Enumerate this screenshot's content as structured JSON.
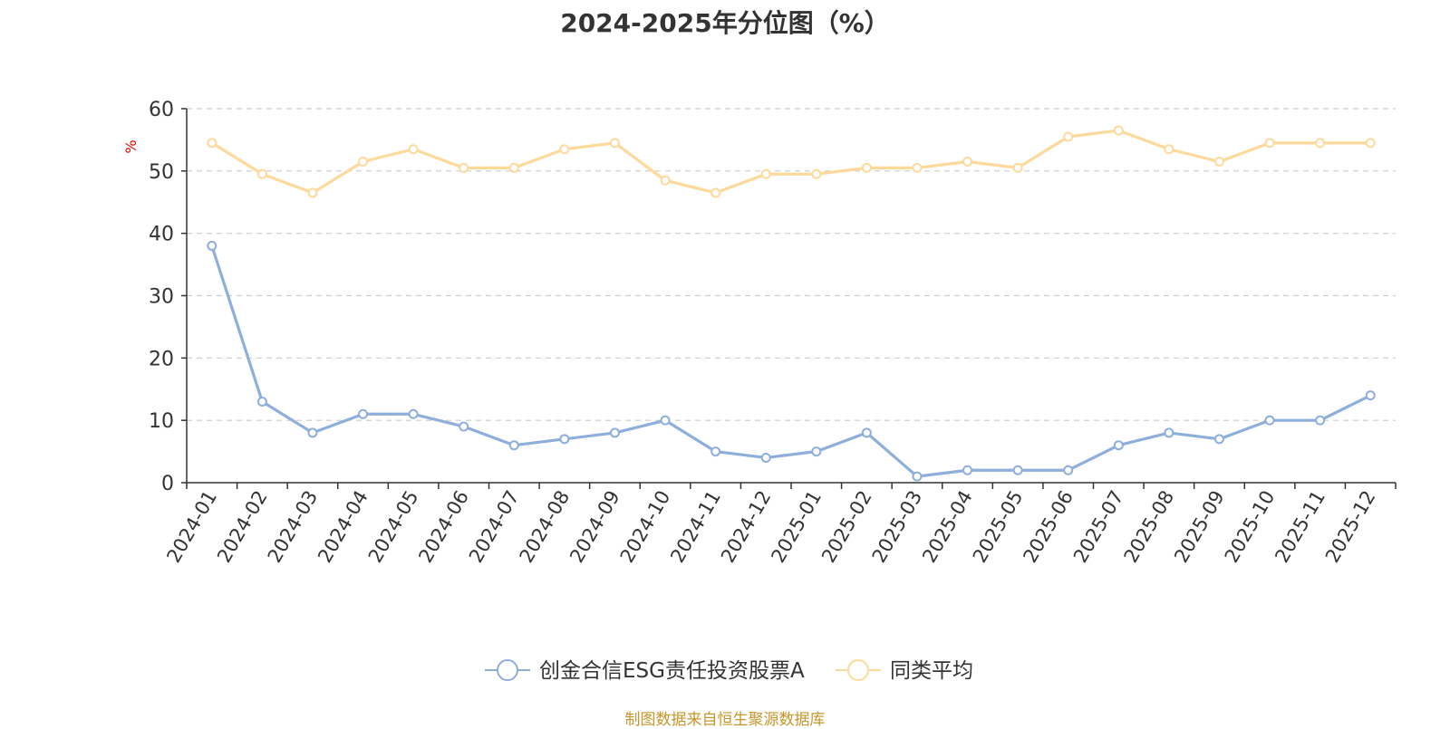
{
  "chart_data": {
    "type": "line",
    "title": "2024-2025年分位图（%）",
    "ylabel": "%",
    "xlabel": "",
    "ylim": [
      0,
      60
    ],
    "yticks": [
      0,
      10,
      20,
      30,
      40,
      50,
      60
    ],
    "grid": true,
    "legend_position": "bottom",
    "categories": [
      "2024-01",
      "2024-02",
      "2024-03",
      "2024-04",
      "2024-05",
      "2024-06",
      "2024-07",
      "2024-08",
      "2024-09",
      "2024-10",
      "2024-11",
      "2024-12",
      "2025-01",
      "2025-02",
      "2025-03",
      "2025-04",
      "2025-05",
      "2025-06",
      "2025-07",
      "2025-08",
      "2025-09",
      "2025-10",
      "2025-11",
      "2025-12"
    ],
    "series": [
      {
        "name": "创金合信ESG责任投资股票A",
        "color": "#8eaedb",
        "values": [
          38,
          13,
          8,
          11,
          11,
          9,
          6,
          7,
          8,
          10,
          5,
          4,
          5,
          8,
          1,
          2,
          2,
          2,
          6,
          8,
          7,
          10,
          10,
          14
        ]
      },
      {
        "name": "同类平均",
        "color": "#fdd99b",
        "values": [
          54.5,
          49.5,
          46.5,
          51.5,
          53.5,
          50.5,
          50.5,
          53.5,
          54.5,
          48.5,
          46.5,
          49.5,
          49.5,
          50.5,
          50.5,
          51.5,
          50.5,
          55.5,
          56.5,
          53.5,
          51.5,
          54.5,
          54.5,
          54.5
        ]
      }
    ]
  },
  "source_note": "制图数据来自恒生聚源数据库"
}
